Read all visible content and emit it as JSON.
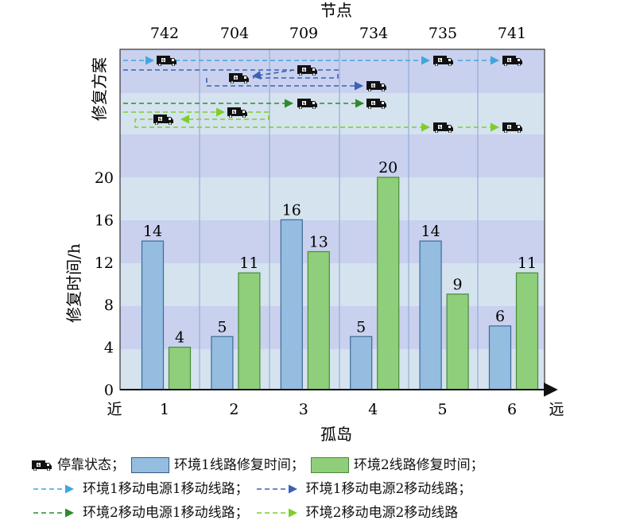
{
  "top_axis": {
    "title": "节点",
    "nodes": [
      "742",
      "704",
      "709",
      "734",
      "735",
      "741"
    ]
  },
  "plan_label": "修复方案",
  "colors": {
    "env1_bar": "#94bde0",
    "env1_bar_stroke": "#3e6a96",
    "env2_bar": "#8fce7a",
    "env2_bar_stroke": "#4b8a3a",
    "route_e1_s1": "#41a6e0",
    "route_e1_s2": "#3a62b6",
    "route_e2_s1": "#2e8a2e",
    "route_e2_s2": "#7ccf2a",
    "band_light": "#d4e3ee",
    "band_purple": "#c9d1ee",
    "band_blue": "#c2d4ef"
  },
  "legend": {
    "parking": "停靠状态；",
    "env1": "环境1线路修复时间；",
    "env2": "环境2线路修复时间；",
    "e1s1": "环境1移动电源1移动线路；",
    "e1s2": "环境1移动电源2移动线路；",
    "e2s1": "环境2移动电源1移动线路；",
    "e2s2": "环境2移动电源2移动线路"
  },
  "chart_data": {
    "type": "bar",
    "categories": [
      "1",
      "2",
      "3",
      "4",
      "5",
      "6"
    ],
    "series": [
      {
        "name": "环境1线路修复时间",
        "values": [
          14,
          5,
          16,
          5,
          14,
          6
        ]
      },
      {
        "name": "环境2线路修复时间",
        "values": [
          4,
          11,
          13,
          20,
          9,
          11
        ]
      }
    ],
    "xlabel": "孤岛",
    "x_near": "近",
    "x_far": "远",
    "ylabel": "修复时间/h",
    "ylim": [
      0,
      20
    ],
    "yticks": [
      0,
      4,
      8,
      12,
      16,
      20
    ],
    "grid": false,
    "legend_position": "bottom"
  }
}
